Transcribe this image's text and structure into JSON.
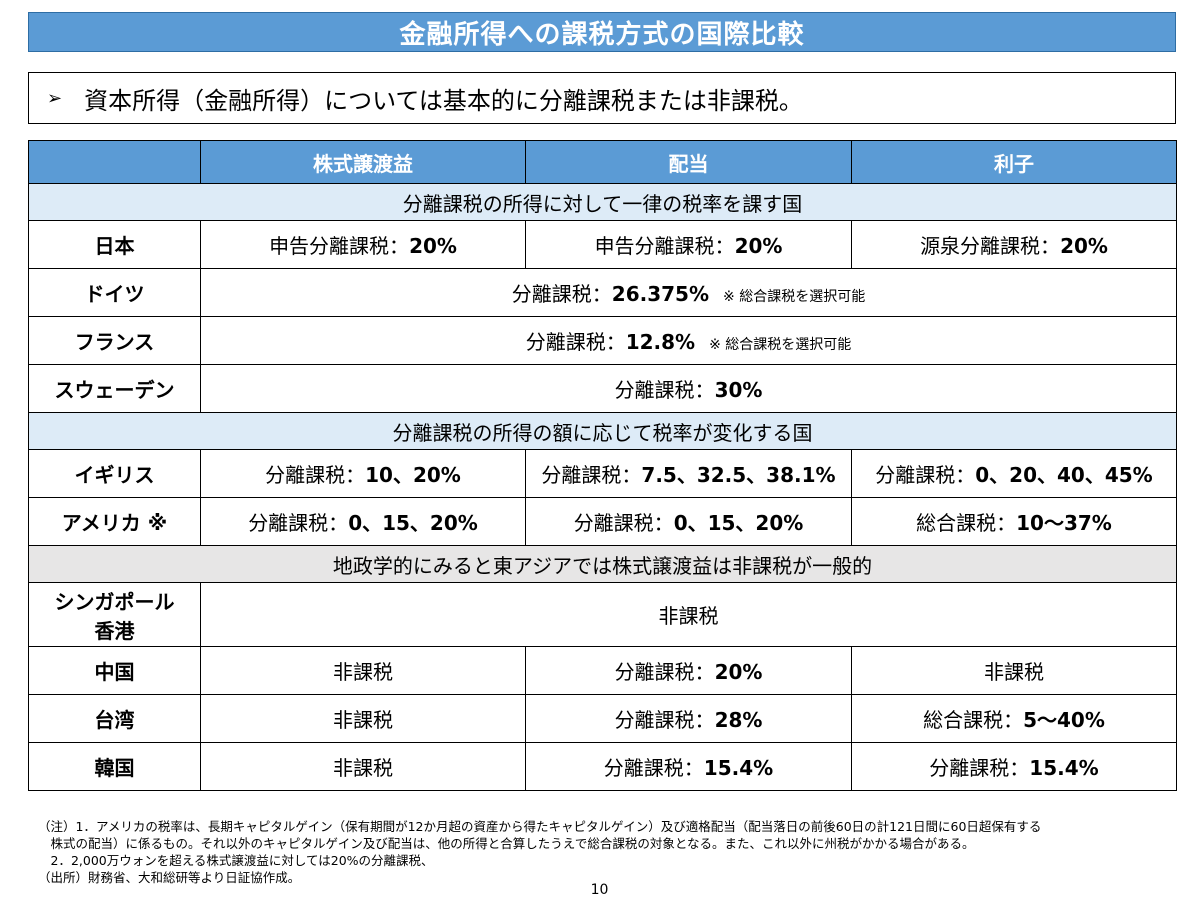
{
  "title": "金融所得への課税方式の国際比較",
  "summary": {
    "arrow": "➢",
    "text": "資本所得（金融所得）については基本的に分離課税または非課税。"
  },
  "columns": [
    "",
    "株式譲渡益",
    "配当",
    "利子"
  ],
  "sections": {
    "flat": "分離課税の所得に対して一律の税率を課す国",
    "progressive": "分離課税の所得の額に応じて税率が変化する国",
    "east_asia": "地政学的にみると東アジアでは株式譲渡益は非課税が一般的"
  },
  "rows": {
    "japan": {
      "country": "日本",
      "c1_label": "申告分離課税：",
      "c1_rate": "20%",
      "c2_label": "申告分離課税：",
      "c2_rate": "20%",
      "c3_label": "源泉分離課税：",
      "c3_rate": "20%"
    },
    "germany": {
      "country": "ドイツ",
      "label": "分離課税：",
      "rate": "26.375%",
      "note": "※ 総合課税を選択可能"
    },
    "france": {
      "country": "フランス",
      "label": "分離課税：",
      "rate": "12.8%",
      "note": "※ 総合課税を選択可能"
    },
    "sweden": {
      "country": "スウェーデン",
      "label": "分離課税：",
      "rate": "30%"
    },
    "uk": {
      "country": "イギリス",
      "c1_label": "分離課税：",
      "c1_rate": "10、20%",
      "c2_label": "分離課税：",
      "c2_rate": "7.5、32.5、38.1%",
      "c3_label": "分離課税：",
      "c3_rate": "0、20、40、45%"
    },
    "usa": {
      "country": "アメリカ ※",
      "c1_label": "分離課税：",
      "c1_rate": "0、15、20%",
      "c2_label": "分離課税：",
      "c2_rate": "0、15、20%",
      "c3_label": "総合課税：",
      "c3_rate": "10〜37%"
    },
    "sg_hk": {
      "country_line1": "シンガポール",
      "country_line2": "香港",
      "value": "非課税"
    },
    "china": {
      "country": "中国",
      "c1": "非課税",
      "c2_label": "分離課税：",
      "c2_rate": "20%",
      "c3": "非課税"
    },
    "taiwan": {
      "country": "台湾",
      "c1": "非課税",
      "c2_label": "分離課税：",
      "c2_rate": "28%",
      "c3_label": "総合課税：",
      "c3_rate": "5〜40%"
    },
    "korea": {
      "country": "韓国",
      "c1": "非課税",
      "c2_label": "分離課税：",
      "c2_rate": "15.4%",
      "c3_label": "分離課税：",
      "c3_rate": "15.4%"
    }
  },
  "footnotes": [
    "（注）1．アメリカの税率は、長期キャピタルゲイン（保有期間が12か月超の資産から得たキャピタルゲイン）及び適格配当（配当落日の前後60日の計121日間に60日超保有する",
    "　株式の配当）に係るもの。それ以外のキャピタルゲイン及び配当は、他の所得と合算したうえで総合課税の対象となる。また、これ以外に州税がかかる場合がある。",
    "　2．2,000万ウォンを超える株式譲渡益に対しては20%の分離課税、",
    "（出所）財務省、大和総研等より日証協作成。"
  ],
  "page_number": "10",
  "colors": {
    "header_blue": "#5b9bd5",
    "section_blue": "#ddebf7",
    "section_gray": "#e7e6e6"
  }
}
